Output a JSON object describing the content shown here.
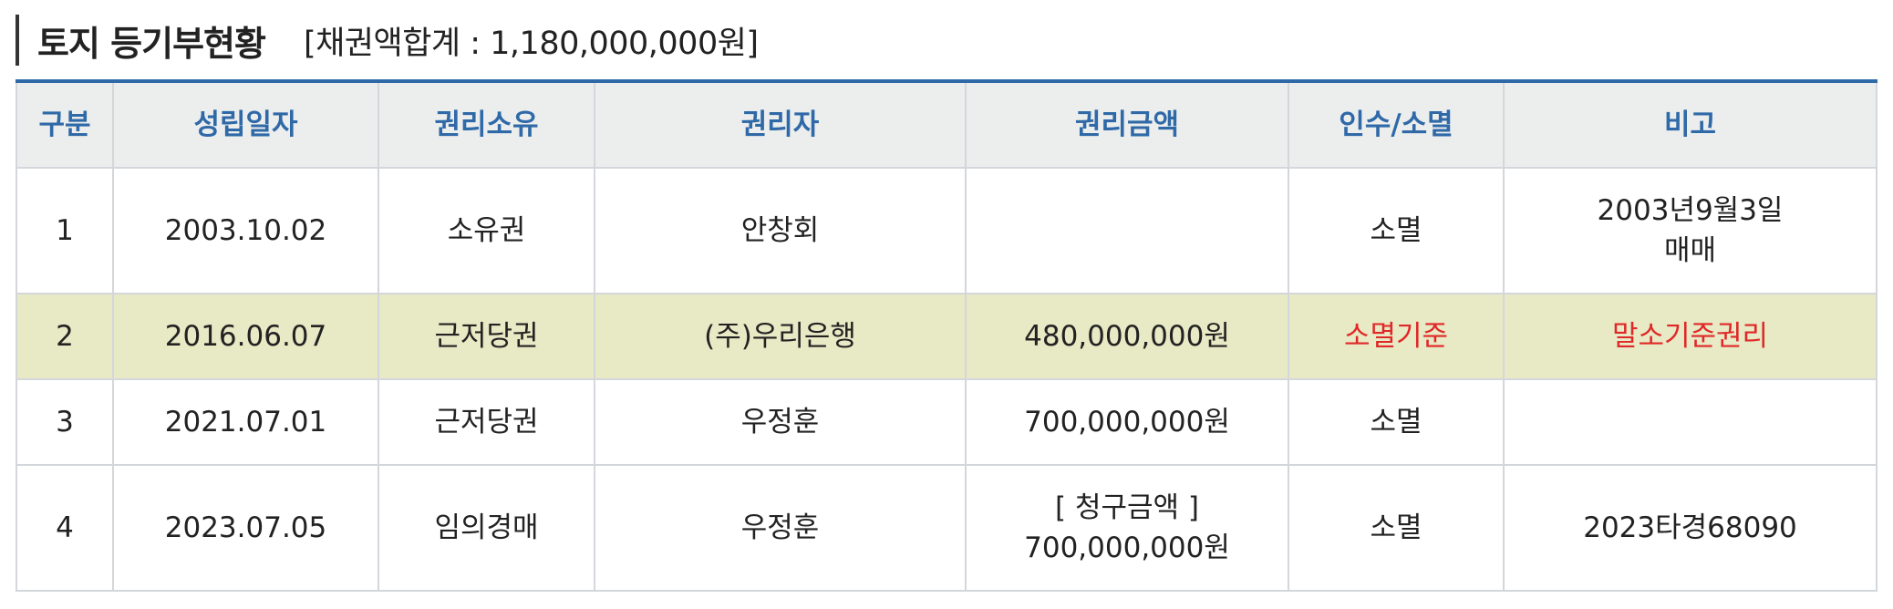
{
  "header": {
    "title": "토지 등기부현황",
    "subtitle": "[채권액합계 : 1,180,000,000원]"
  },
  "table": {
    "columns": [
      "구분",
      "성립일자",
      "권리소유",
      "권리자",
      "권리금액",
      "인수/소멸",
      "비고"
    ],
    "rows": [
      {
        "no": "1",
        "date": "2003.10.02",
        "type": "소유권",
        "holder": "안창회",
        "amount_line1": "",
        "amount_line2": "",
        "status": "소멸",
        "note_line1": "2003년9월3일",
        "note_line2": "매매",
        "highlighted": false
      },
      {
        "no": "2",
        "date": "2016.06.07",
        "type": "근저당권",
        "holder": "(주)우리은행",
        "amount_line1": "480,000,000원",
        "amount_line2": "",
        "status": "소멸기준",
        "note_line1": "말소기준권리",
        "note_line2": "",
        "highlighted": true
      },
      {
        "no": "3",
        "date": "2021.07.01",
        "type": "근저당권",
        "holder": "우정훈",
        "amount_line1": "700,000,000원",
        "amount_line2": "",
        "status": "소멸",
        "note_line1": "",
        "note_line2": "",
        "highlighted": false
      },
      {
        "no": "4",
        "date": "2023.07.05",
        "type": "임의경매",
        "holder": "우정훈",
        "amount_line1": "[ 청구금액 ]",
        "amount_line2": "700,000,000원",
        "status": "소멸",
        "note_line1": "2023타경68090",
        "note_line2": "",
        "highlighted": false
      }
    ]
  },
  "colors": {
    "accent_blue": "#2f69a7",
    "highlight_row": "#e8e9c5",
    "alert_red": "#e02828",
    "header_bg": "#eceeee"
  }
}
